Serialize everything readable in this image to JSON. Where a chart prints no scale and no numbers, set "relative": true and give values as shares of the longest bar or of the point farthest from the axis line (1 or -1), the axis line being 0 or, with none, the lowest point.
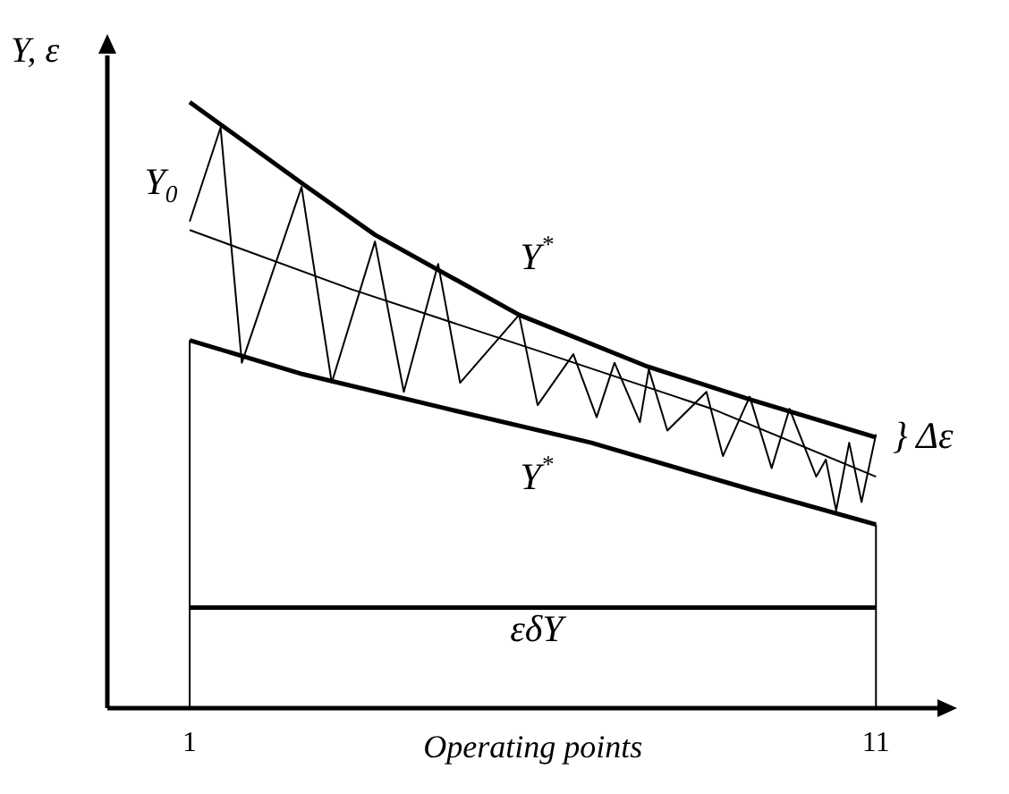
{
  "chart_data": {
    "type": "line",
    "relative": true,
    "xlabel": "Operating points",
    "ylabel": "Y, ε",
    "xlim": [
      -0.2,
      12
    ],
    "xticks": [
      1,
      11
    ],
    "grid": false,
    "legend": false,
    "marker": "none",
    "line_style": "solid",
    "series": [
      {
        "color": "#000000",
        "x": [
          1,
          2.65,
          3.7,
          5.8,
          7.64,
          9.2,
          11
        ],
        "values": [
          1,
          0.865,
          0.781,
          0.649,
          0.565,
          0.508,
          0.447
        ]
      },
      {
        "color": "#000000",
        "x": [
          1,
          2.65,
          4.75,
          6.85,
          9.2,
          11
        ],
        "values": [
          0.607,
          0.551,
          0.494,
          0.438,
          0.36,
          0.303
        ]
      },
      {
        "color": "#000000",
        "x": [
          1,
          3.36,
          5.99,
          8.61,
          11
        ],
        "values": [
          0.789,
          0.691,
          0.593,
          0.494,
          0.382
        ]
      },
      {
        "color": "#000000",
        "x": [
          1,
          1.45,
          1.76,
          2.63,
          3.07,
          3.7,
          4.12,
          4.62,
          4.94,
          5.8,
          6.07,
          6.59,
          6.93,
          7.19,
          7.56,
          7.69,
          7.96,
          8.53,
          8.77,
          9.16,
          9.48,
          9.74,
          10.13,
          10.27,
          10.42,
          10.61,
          10.79,
          11
        ],
        "values": [
          0.803,
          0.958,
          0.57,
          0.86,
          0.537,
          0.77,
          0.522,
          0.733,
          0.537,
          0.649,
          0.5,
          0.584,
          0.48,
          0.57,
          0.472,
          0.559,
          0.458,
          0.522,
          0.416,
          0.514,
          0.396,
          0.494,
          0.382,
          0.41,
          0.326,
          0.438,
          0.34,
          0.452
        ]
      },
      {
        "color": "#000000",
        "x": [
          1,
          11
        ],
        "values": [
          0.166,
          0.166
        ]
      },
      {
        "color": "#000000",
        "x": [
          1,
          1
        ],
        "values": [
          0,
          0.607
        ]
      },
      {
        "color": "#000000",
        "x": [
          11,
          11
        ],
        "values": [
          0,
          0.303
        ]
      }
    ],
    "annotations": [
      "Y$^{*}$",
      "Y$^{*}$",
      "Y$_{0}$",
      "} Δε",
      "εδY"
    ]
  }
}
